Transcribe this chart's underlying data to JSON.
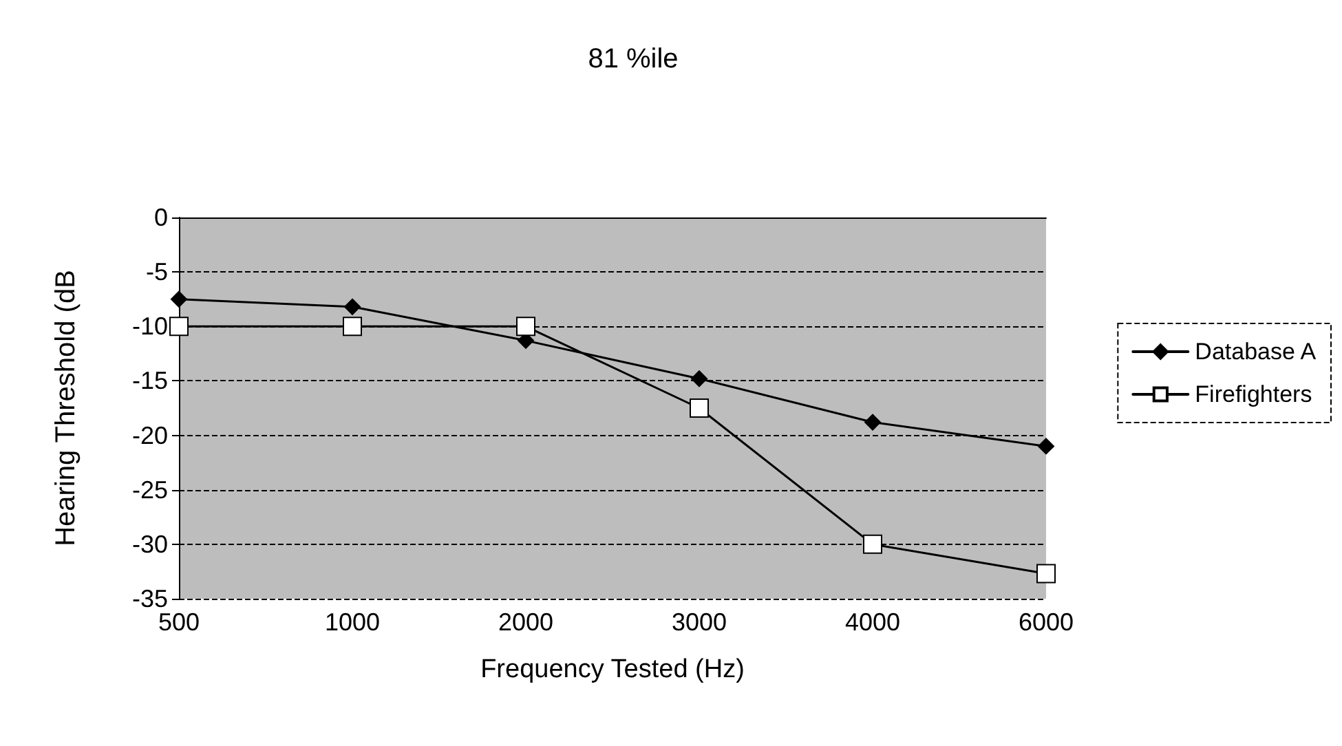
{
  "chart_data": {
    "type": "line",
    "title": "81 %ile",
    "xlabel": "Frequency Tested (Hz)",
    "ylabel": "Hearing Threshold (dB",
    "categories": [
      "500",
      "1000",
      "2000",
      "3000",
      "4000",
      "6000"
    ],
    "series": [
      {
        "name": "Database A",
        "color": "#000000",
        "marker": "diamond",
        "values": [
          -7.5,
          -8.2,
          -11.3,
          -14.8,
          -18.8,
          -21
        ]
      },
      {
        "name": "Firefighters",
        "color": "#000000",
        "marker": "square",
        "values": [
          -10,
          -10,
          -10,
          -17.5,
          -30,
          -32.7
        ]
      }
    ],
    "ylim": [
      -35,
      0
    ],
    "yticks": [
      -35,
      -30,
      -25,
      -20,
      -15,
      -10,
      -5,
      0
    ],
    "grid": "y",
    "legend": "right",
    "line_style": "solid"
  }
}
